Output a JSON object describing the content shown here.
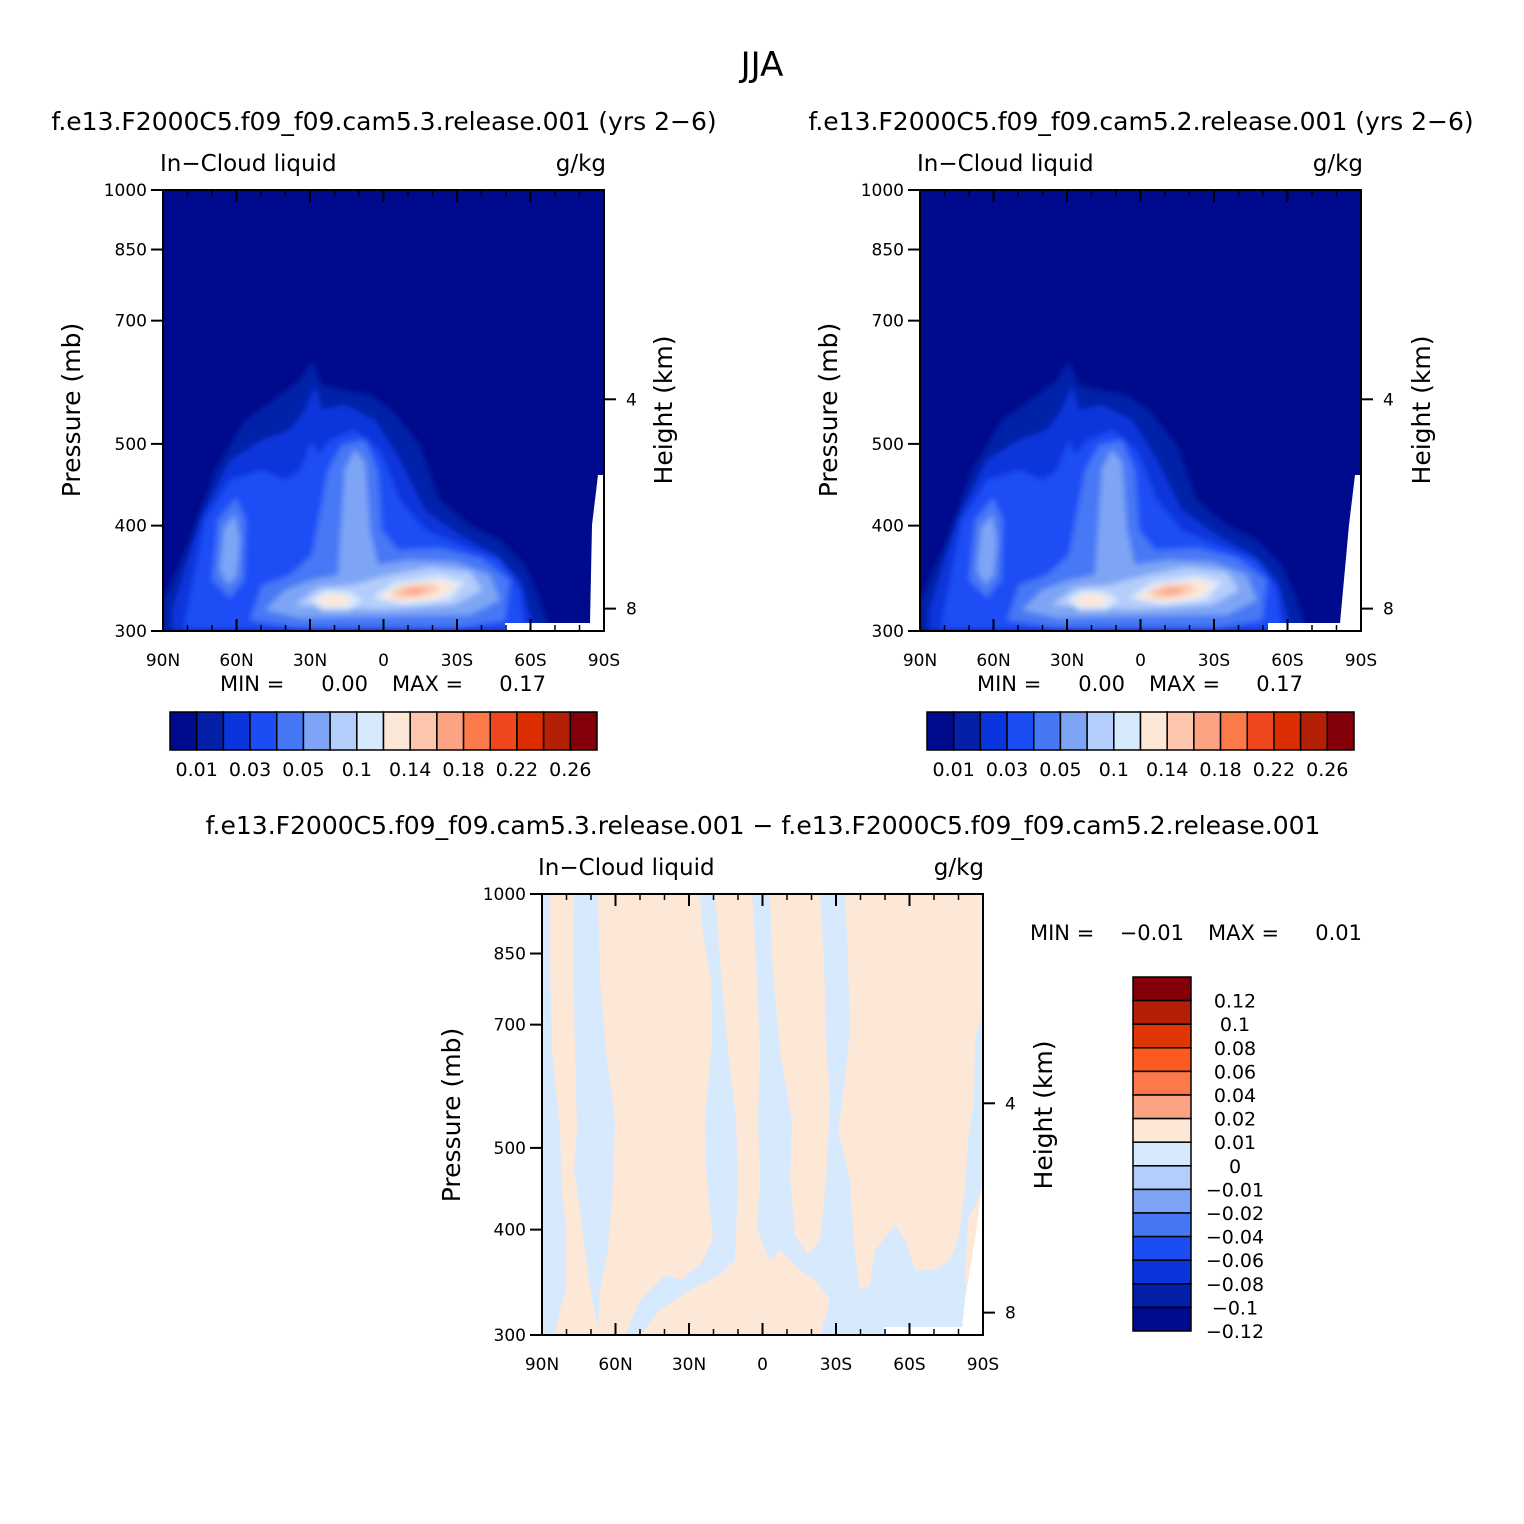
{
  "figure": {
    "title": "JJA",
    "diff_title": "f.e13.F2000C5.f09_f09.cam5.3.release.001 − f.e13.F2000C5.f09_f09.cam5.2.release.001"
  },
  "palette": {
    "levels12": [
      "#000a8c",
      "#0520a8",
      "#0a35dc",
      "#1b4df5",
      "#4678f5",
      "#7ea5f5",
      "#b4cdfb",
      "#d7e9fd",
      "#fde8d8",
      "#fcc7ad",
      "#fca384",
      "#fc7a4a",
      "#f0461e",
      "#dc2d00",
      "#b42005",
      "#840008"
    ],
    "diff": [
      "#000a8c",
      "#0520a8",
      "#0a35dc",
      "#1b4df5",
      "#4678f5",
      "#7ea5f5",
      "#b4cdfb",
      "#d7e9fd",
      "#fde8d8",
      "#fca384",
      "#fc7a4a",
      "#fc5a20",
      "#e03505",
      "#b42005",
      "#840008"
    ]
  },
  "chart_data": [
    {
      "type": "heatmap",
      "id": "panel_a",
      "title": "f.e13.F2000C5.f09_f09.cam5.3.release.001 (yrs 2−6)",
      "left_label": "In−Cloud liquid",
      "right_label": "g/kg",
      "ylabel": "Pressure (mb)",
      "ylabel_right": "Height (km)",
      "x_ticks": [
        "90N",
        "60N",
        "30N",
        "0",
        "30S",
        "60S",
        "90S"
      ],
      "y_ticks": [
        "300",
        "400",
        "500",
        "700",
        "850",
        "1000"
      ],
      "y2_ticks": [
        "8",
        "4"
      ],
      "min_text": "MIN =",
      "min_value": "0.00",
      "max_text": "MAX =",
      "max_value": "0.17",
      "colorbar_labels": [
        "0.01",
        "0.03",
        "0.05",
        "0.1",
        "0.14",
        "0.18",
        "0.22",
        "0.26"
      ]
    },
    {
      "type": "heatmap",
      "id": "panel_b",
      "title": "f.e13.F2000C5.f09_f09.cam5.2.release.001 (yrs 2−6)",
      "left_label": "In−Cloud liquid",
      "right_label": "g/kg",
      "ylabel": "Pressure (mb)",
      "ylabel_right": "Height (km)",
      "x_ticks": [
        "90N",
        "60N",
        "30N",
        "0",
        "30S",
        "60S",
        "90S"
      ],
      "y_ticks": [
        "300",
        "400",
        "500",
        "700",
        "850",
        "1000"
      ],
      "y2_ticks": [
        "8",
        "4"
      ],
      "min_text": "MIN =",
      "min_value": "0.00",
      "max_text": "MAX =",
      "max_value": "0.17",
      "colorbar_labels": [
        "0.01",
        "0.03",
        "0.05",
        "0.1",
        "0.14",
        "0.18",
        "0.22",
        "0.26"
      ]
    },
    {
      "type": "heatmap",
      "id": "panel_diff",
      "left_label": "In−Cloud liquid",
      "right_label": "g/kg",
      "ylabel": "Pressure (mb)",
      "ylabel_right": "Height (km)",
      "x_ticks": [
        "90N",
        "60N",
        "30N",
        "0",
        "30S",
        "60S",
        "90S"
      ],
      "y_ticks": [
        "300",
        "400",
        "500",
        "700",
        "850",
        "1000"
      ],
      "y2_ticks": [
        "8",
        "4"
      ],
      "min_text": "MIN =",
      "min_value": "−0.01",
      "max_text": "MAX =",
      "max_value": "0.01",
      "colorbar_labels": [
        "0.12",
        "0.1",
        "0.08",
        "0.06",
        "0.04",
        "0.02",
        "0.01",
        "0",
        "−0.01",
        "−0.02",
        "−0.04",
        "−0.06",
        "−0.08",
        "−0.1",
        "−0.12"
      ]
    }
  ]
}
